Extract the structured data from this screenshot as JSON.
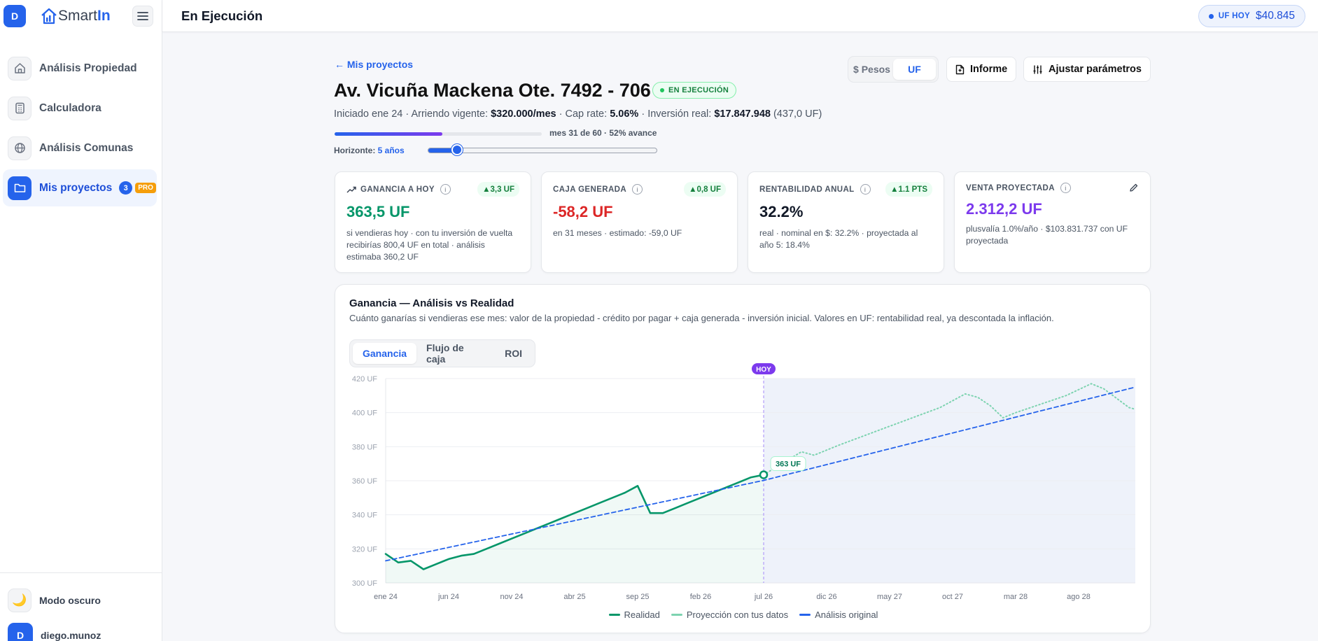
{
  "app": {
    "avatar_letter": "D",
    "logo_text": "Smart",
    "logo_accent": "In"
  },
  "sidebar": {
    "items": [
      {
        "label": "Análisis Propiedad"
      },
      {
        "label": "Calculadora"
      },
      {
        "label": "Análisis Comunas"
      },
      {
        "label": "Mis proyectos",
        "count": "3",
        "badge": "PRO"
      }
    ],
    "dark_mode": "Modo oscuro",
    "user_letter": "D",
    "user_name": "diego.munoz"
  },
  "topbar": {
    "title": "En Ejecución",
    "uf_label": "UF HOY",
    "uf_value": "$40.845"
  },
  "project": {
    "back": "← Mis proyectos",
    "title": "Av. Vicuña Mackena Ote. 7492 - 706",
    "status": "EN EJECUCIÓN",
    "meta": {
      "started": "Iniciado ene 24 · Arriendo vigente: ",
      "rent": "$320.000/mes",
      "cap_label": " · Cap rate: ",
      "cap": "5.06%",
      "inv_label": " · Inversión real: ",
      "inv": "$17.847.948",
      "inv_uf": " (437,0 UF)"
    },
    "progress_text": "mes 31 de 60 · 52% avance",
    "progress_pct": 52,
    "horizon_label": "Horizonte: ",
    "horizon_value": "5 años",
    "horizon_level": 0.125
  },
  "toolbar": {
    "currency_pesos": "$ Pesos",
    "currency_uf": "UF",
    "report": "Informe",
    "params": "Ajustar parámetros"
  },
  "kpis": [
    {
      "title": "GANANCIA A HOY",
      "delta": "▲3,3 UF",
      "value": "363,5 UF",
      "color": "#059669",
      "desc": "si vendieras hoy · con tu inversión de vuelta recibirías 800,4 UF en total · análisis estimaba 360,2 UF"
    },
    {
      "title": "CAJA GENERADA",
      "delta": "▲0,8 UF",
      "value": "-58,2 UF",
      "color": "#dc2626",
      "desc": "en 31 meses · estimado: -59,0 UF"
    },
    {
      "title": "RENTABILIDAD ANUAL",
      "delta": "▲1.1 PTS",
      "value": "32.2%",
      "color": "#111827",
      "desc": "real · nominal en $: 32.2% · proyectada al año 5: 18.4%"
    },
    {
      "title": "VENTA PROYECTADA",
      "delta": "",
      "value": "2.312,2 UF",
      "color": "#7c3aed",
      "desc": "plusvalía 1.0%/año · $103.831.737 con UF proyectada"
    }
  ],
  "chart_card": {
    "title": "Ganancia — Análisis vs Realidad",
    "subtitle": "Cuánto ganarías si vendieras ese mes: valor de la propiedad - crédito por pagar + caja generada - inversión inicial. Valores en UF: rentabilidad real, ya descontada la inflación.",
    "tabs": [
      "Ganancia",
      "Flujo de caja",
      "ROI"
    ],
    "active_tab": 0
  },
  "chart_data": {
    "type": "line",
    "ylim": [
      300,
      420
    ],
    "yticks": [
      420,
      400,
      380,
      360,
      340,
      320,
      300
    ],
    "ytick_suffix": " UF",
    "xticks": [
      "ene 24",
      "jun 24",
      "nov 24",
      "abr 25",
      "sep 25",
      "feb 26",
      "jul 26",
      "dic 26",
      "may 27",
      "oct 27",
      "mar 28",
      "ago 28"
    ],
    "today_label": "HOY",
    "today_month": 30,
    "today_value_label": "363 UF",
    "grid": true,
    "series": [
      {
        "name": "Realidad",
        "color": "#059669",
        "style": "solid",
        "points": [
          [
            0,
            317
          ],
          [
            1,
            312
          ],
          [
            2,
            313
          ],
          [
            3,
            308
          ],
          [
            4,
            311
          ],
          [
            5,
            314
          ],
          [
            6,
            316
          ],
          [
            7,
            317
          ],
          [
            8,
            320
          ],
          [
            9,
            323
          ],
          [
            10,
            326
          ],
          [
            11,
            329
          ],
          [
            12,
            332
          ],
          [
            13,
            335
          ],
          [
            14,
            338
          ],
          [
            15,
            341
          ],
          [
            16,
            344
          ],
          [
            17,
            347
          ],
          [
            18,
            350
          ],
          [
            19,
            353
          ],
          [
            20,
            357
          ],
          [
            21,
            341
          ],
          [
            22,
            341
          ],
          [
            23,
            344
          ],
          [
            24,
            347
          ],
          [
            25,
            350
          ],
          [
            26,
            353
          ],
          [
            27,
            356
          ],
          [
            28,
            359
          ],
          [
            29,
            362
          ],
          [
            30,
            363.5
          ]
        ]
      },
      {
        "name": "Proyección con tus datos",
        "color": "#7dd3b0",
        "style": "dotted",
        "points": [
          [
            30,
            363.5
          ],
          [
            33,
            377
          ],
          [
            34,
            375
          ],
          [
            36,
            381
          ],
          [
            40,
            392
          ],
          [
            44,
            403
          ],
          [
            46,
            411
          ],
          [
            47,
            409
          ],
          [
            48,
            404
          ],
          [
            49,
            397
          ],
          [
            50,
            400
          ],
          [
            52,
            405
          ],
          [
            54,
            410
          ],
          [
            56,
            417
          ],
          [
            57,
            414
          ],
          [
            59,
            403
          ],
          [
            59.5,
            402
          ]
        ]
      },
      {
        "name": "Análisis original",
        "color": "#2563eb",
        "style": "dashed",
        "points": [
          [
            0,
            313
          ],
          [
            30,
            360.2
          ],
          [
            59.5,
            415
          ]
        ]
      }
    ]
  },
  "colors": {
    "accent": "#2563eb",
    "green": "#059669",
    "red": "#dc2626",
    "purple": "#7c3aed"
  },
  "icons": [
    "home-icon",
    "calculator-icon",
    "globe-icon",
    "folder-icon",
    "moon-icon",
    "menu-icon",
    "document-icon",
    "sliders-icon",
    "trend-up-icon",
    "pencil-icon",
    "info-icon"
  ]
}
